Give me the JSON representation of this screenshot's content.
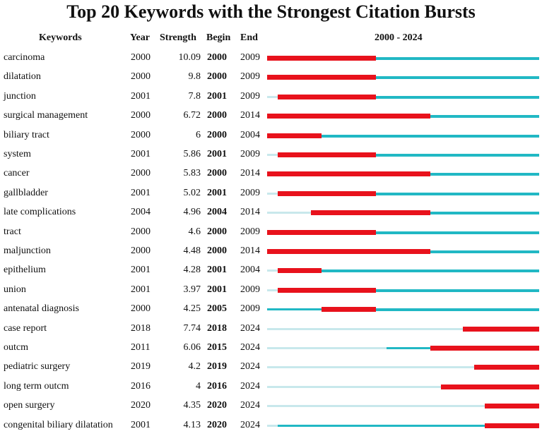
{
  "chart_data": {
    "type": "table",
    "title": "Top 20 Keywords with the Strongest Citation Bursts",
    "columns": [
      "Keywords",
      "Year",
      "Strength",
      "Begin",
      "End",
      "2000 - 2024"
    ],
    "period": [
      2000,
      2024
    ],
    "colors": {
      "burst": "#e8121c",
      "active": "#21b8c4",
      "inactive": "#c8e8ec"
    },
    "rows": [
      {
        "keyword": "carcinoma",
        "year": "2000",
        "strength": "10.09",
        "begin": "2000",
        "end": "2009"
      },
      {
        "keyword": "dilatation",
        "year": "2000",
        "strength": "9.8",
        "begin": "2000",
        "end": "2009"
      },
      {
        "keyword": "junction",
        "year": "2001",
        "strength": "7.8",
        "begin": "2001",
        "end": "2009"
      },
      {
        "keyword": "surgical management",
        "year": "2000",
        "strength": "6.72",
        "begin": "2000",
        "end": "2014"
      },
      {
        "keyword": "biliary tract",
        "year": "2000",
        "strength": "6",
        "begin": "2000",
        "end": "2004"
      },
      {
        "keyword": "system",
        "year": "2001",
        "strength": "5.86",
        "begin": "2001",
        "end": "2009"
      },
      {
        "keyword": "cancer",
        "year": "2000",
        "strength": "5.83",
        "begin": "2000",
        "end": "2014"
      },
      {
        "keyword": "gallbladder",
        "year": "2001",
        "strength": "5.02",
        "begin": "2001",
        "end": "2009"
      },
      {
        "keyword": "late complications",
        "year": "2004",
        "strength": "4.96",
        "begin": "2004",
        "end": "2014"
      },
      {
        "keyword": "tract",
        "year": "2000",
        "strength": "4.6",
        "begin": "2000",
        "end": "2009"
      },
      {
        "keyword": "maljunction",
        "year": "2000",
        "strength": "4.48",
        "begin": "2000",
        "end": "2014"
      },
      {
        "keyword": "epithelium",
        "year": "2001",
        "strength": "4.28",
        "begin": "2001",
        "end": "2004"
      },
      {
        "keyword": "union",
        "year": "2001",
        "strength": "3.97",
        "begin": "2001",
        "end": "2009"
      },
      {
        "keyword": "antenatal diagnosis",
        "year": "2000",
        "strength": "4.25",
        "begin": "2005",
        "end": "2009"
      },
      {
        "keyword": "case report",
        "year": "2018",
        "strength": "7.74",
        "begin": "2018",
        "end": "2024"
      },
      {
        "keyword": "outcm",
        "year": "2011",
        "strength": "6.06",
        "begin": "2015",
        "end": "2024"
      },
      {
        "keyword": "pediatric surgery",
        "year": "2019",
        "strength": "4.2",
        "begin": "2019",
        "end": "2024"
      },
      {
        "keyword": "long term outcm",
        "year": "2016",
        "strength": "4",
        "begin": "2016",
        "end": "2024"
      },
      {
        "keyword": "open surgery",
        "year": "2020",
        "strength": "4.35",
        "begin": "2020",
        "end": "2024"
      },
      {
        "keyword": "congenital biliary dilatation",
        "year": "2001",
        "strength": "4.13",
        "begin": "2020",
        "end": "2024"
      }
    ]
  }
}
